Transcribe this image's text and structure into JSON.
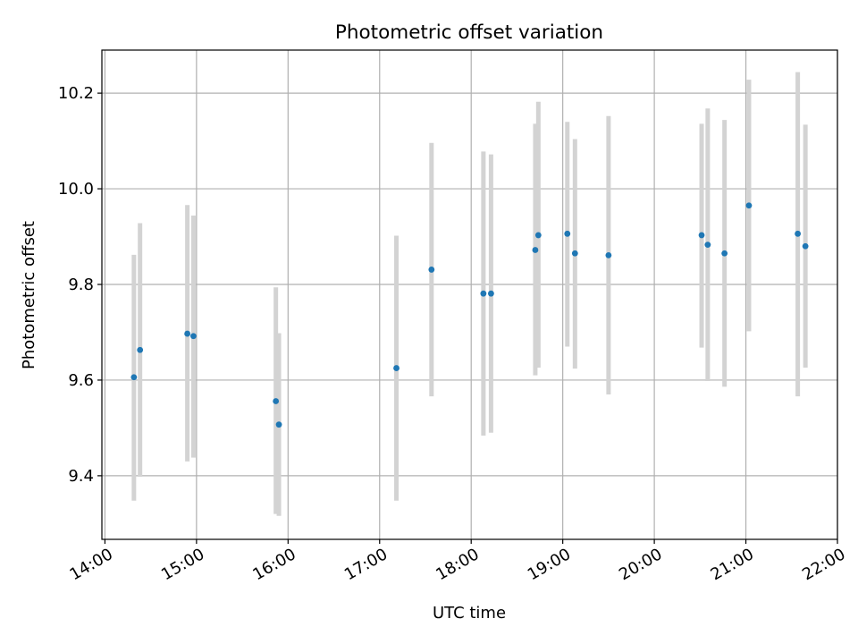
{
  "chart_data": {
    "type": "scatter",
    "title": "Photometric offset variation",
    "xlabel": "UTC time",
    "ylabel": "Photometric offset",
    "x_tick_labels": [
      "14:00",
      "15:00",
      "16:00",
      "17:00",
      "18:00",
      "19:00",
      "20:00",
      "21:00",
      "22:00"
    ],
    "y_tick_labels": [
      "9.4",
      "9.6",
      "9.8",
      "10.0",
      "10.2"
    ],
    "y_ticks": [
      9.4,
      9.6,
      9.8,
      10.0,
      10.2
    ],
    "xlim": [
      "13:58",
      "22:00"
    ],
    "ylim": [
      9.267,
      10.29
    ],
    "grid": true,
    "colors": {
      "point": "#1f77b4",
      "errorbar": "#d3d3d3",
      "grid": "#b0b0b0"
    },
    "series": [
      {
        "points": [
          {
            "x": "14:19",
            "y": 9.606,
            "ylow": 9.348,
            "yhigh": 9.862
          },
          {
            "x": "14:23",
            "y": 9.663,
            "ylow": 9.398,
            "yhigh": 9.928
          },
          {
            "x": "14:54",
            "y": 9.697,
            "ylow": 9.43,
            "yhigh": 9.966
          },
          {
            "x": "14:58",
            "y": 9.692,
            "ylow": 9.438,
            "yhigh": 9.944
          },
          {
            "x": "15:52",
            "y": 9.556,
            "ylow": 9.32,
            "yhigh": 9.794
          },
          {
            "x": "15:54",
            "y": 9.507,
            "ylow": 9.316,
            "yhigh": 9.698
          },
          {
            "x": "17:11",
            "y": 9.625,
            "ylow": 9.348,
            "yhigh": 9.902
          },
          {
            "x": "17:34",
            "y": 9.831,
            "ylow": 9.566,
            "yhigh": 10.096
          },
          {
            "x": "18:08",
            "y": 9.781,
            "ylow": 9.484,
            "yhigh": 10.078
          },
          {
            "x": "18:13",
            "y": 9.781,
            "ylow": 9.49,
            "yhigh": 10.072
          },
          {
            "x": "18:42",
            "y": 9.872,
            "ylow": 9.61,
            "yhigh": 10.136
          },
          {
            "x": "18:44",
            "y": 9.903,
            "ylow": 9.626,
            "yhigh": 10.182
          },
          {
            "x": "19:03",
            "y": 9.906,
            "ylow": 9.67,
            "yhigh": 10.14
          },
          {
            "x": "19:08",
            "y": 9.865,
            "ylow": 9.624,
            "yhigh": 10.104
          },
          {
            "x": "19:30",
            "y": 9.861,
            "ylow": 9.57,
            "yhigh": 10.152
          },
          {
            "x": "20:31",
            "y": 9.903,
            "ylow": 9.668,
            "yhigh": 10.136
          },
          {
            "x": "20:35",
            "y": 9.883,
            "ylow": 9.598,
            "yhigh": 10.168
          },
          {
            "x": "20:46",
            "y": 9.865,
            "ylow": 9.586,
            "yhigh": 10.144
          },
          {
            "x": "21:02",
            "y": 9.965,
            "ylow": 9.702,
            "yhigh": 10.228
          },
          {
            "x": "21:34",
            "y": 9.906,
            "ylow": 9.566,
            "yhigh": 10.244
          },
          {
            "x": "21:39",
            "y": 9.88,
            "ylow": 9.626,
            "yhigh": 10.134
          }
        ]
      }
    ]
  }
}
